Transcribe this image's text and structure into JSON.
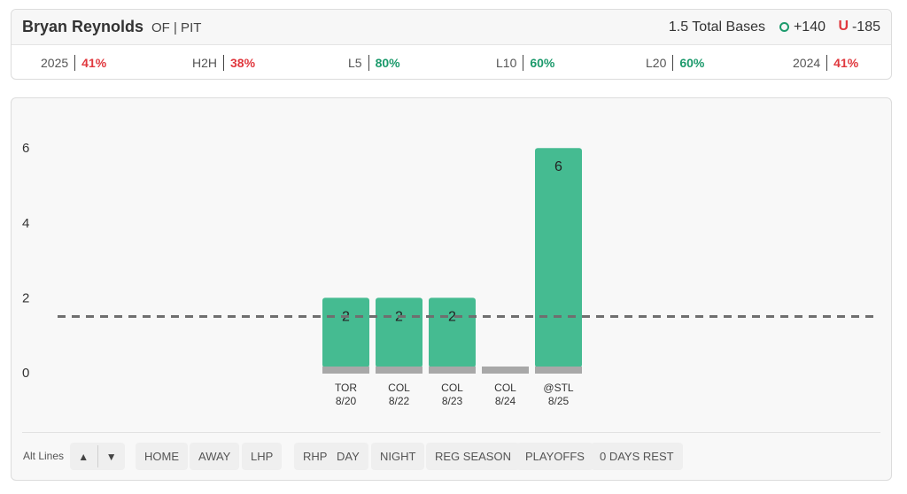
{
  "player": {
    "name": "Bryan Reynolds",
    "meta": "OF | PIT"
  },
  "prop": {
    "line": "1.5 Total Bases",
    "over_odds": "+140",
    "under_icon": "U",
    "under_odds": "-185"
  },
  "colors": {
    "green": "#1c9a6c",
    "red": "#e0383e",
    "bar": "#45bb91",
    "bar_base": "#a8a8a8"
  },
  "splits": [
    {
      "label": "2025",
      "pct": "41%",
      "status": "red"
    },
    {
      "label": "H2H",
      "pct": "38%",
      "status": "red"
    },
    {
      "label": "L5",
      "pct": "80%",
      "status": "green"
    },
    {
      "label": "L10",
      "pct": "60%",
      "status": "green"
    },
    {
      "label": "L20",
      "pct": "60%",
      "status": "green"
    },
    {
      "label": "2024",
      "pct": "41%",
      "status": "red"
    }
  ],
  "chart_data": {
    "type": "bar",
    "categories": [
      "TOR 8/20",
      "COL 8/22",
      "COL 8/23",
      "COL 8/24",
      "@STL 8/25"
    ],
    "opponents": [
      "TOR",
      "COL",
      "COL",
      "COL",
      "@STL"
    ],
    "dates": [
      "8/20",
      "8/22",
      "8/23",
      "8/24",
      "8/25"
    ],
    "values": [
      2,
      2,
      2,
      0,
      6
    ],
    "data_labels": [
      "2",
      "2",
      "2",
      "",
      "6"
    ],
    "y_ticks": [
      0,
      2,
      4,
      6
    ],
    "ylim": [
      0,
      6
    ],
    "threshold": 1.5,
    "title": "",
    "xlabel": "",
    "ylabel": "",
    "grid": false
  },
  "filters": {
    "alt_lines_label": "Alt Lines",
    "up_glyph": "▲",
    "down_glyph": "▼",
    "chips": [
      "HOME",
      "AWAY",
      "LHP",
      "RHP",
      "DAY",
      "NIGHT",
      "REG SEASON",
      "PLAYOFFS",
      "0 DAYS REST"
    ]
  }
}
